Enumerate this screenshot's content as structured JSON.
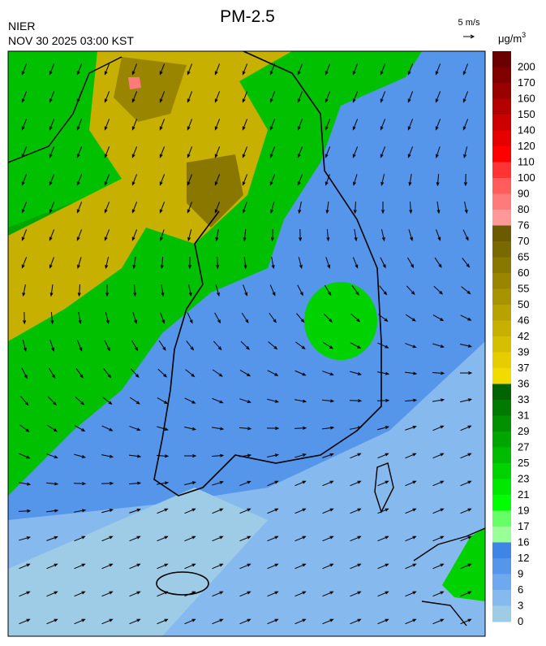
{
  "header": {
    "title": "PM-2.5",
    "agency": "NIER",
    "datetime": "NOV 30 2025 03:00 KST"
  },
  "wind_scale": {
    "label": "5 m/s"
  },
  "legend": {
    "unit": "μg/m",
    "unit_exponent": "3",
    "labels": [
      200,
      170,
      160,
      150,
      140,
      120,
      110,
      100,
      90,
      80,
      76,
      70,
      65,
      60,
      55,
      50,
      46,
      42,
      39,
      37,
      36,
      33,
      31,
      29,
      27,
      25,
      23,
      21,
      19,
      17,
      16,
      12,
      9,
      6,
      3,
      0
    ],
    "colors": [
      "#6b0000",
      "#800000",
      "#990000",
      "#b30000",
      "#cc0000",
      "#e60000",
      "#ff0000",
      "#ff3333",
      "#ff5c5c",
      "#ff7a7a",
      "#ff9999",
      "#6b5a00",
      "#7a6800",
      "#8a7700",
      "#998500",
      "#a89300",
      "#b8a200",
      "#c7b000",
      "#d6be00",
      "#e6cd00",
      "#f2dc00",
      "#006400",
      "#007a00",
      "#009000",
      "#00a600",
      "#00bc00",
      "#00d200",
      "#00e800",
      "#00ff00",
      "#66ff66",
      "#99ff99",
      "#3d85e6",
      "#5596ea",
      "#6ea8ee",
      "#86b9ee",
      "#9ecbe6"
    ]
  }
}
